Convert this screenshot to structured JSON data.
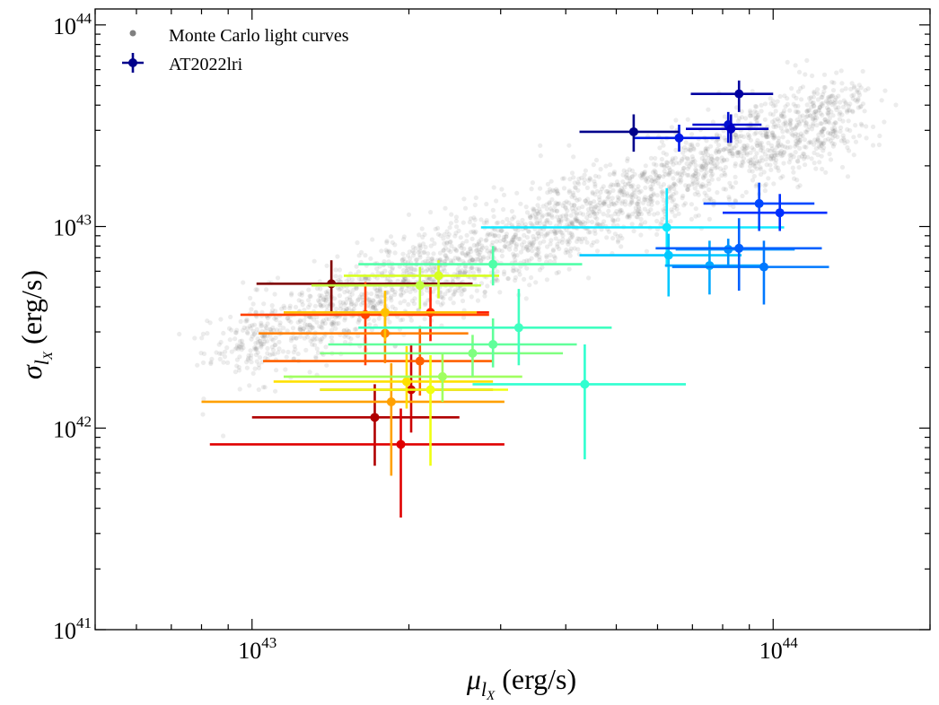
{
  "chart_data": {
    "type": "scatter",
    "title": "",
    "xlabel": {
      "symbol": "μ",
      "subscript": "l",
      "subsubscript": "X",
      "unit": " (erg/s)"
    },
    "ylabel": {
      "symbol": "σ",
      "subscript": "l",
      "subsubscript": "X",
      "unit": " (erg/s)"
    },
    "xscale": "log",
    "yscale": "log",
    "xlim": [
      5e+42,
      2e+44
    ],
    "ylim": [
      1e+41,
      1.2e+44
    ],
    "x_ticks": [
      {
        "base": "10",
        "exp": "43",
        "value": 1e+43
      },
      {
        "base": "10",
        "exp": "44",
        "value": 1e+44
      }
    ],
    "y_ticks": [
      {
        "base": "10",
        "exp": "41",
        "value": 1e+41
      },
      {
        "base": "10",
        "exp": "42",
        "value": 1e+42
      },
      {
        "base": "10",
        "exp": "43",
        "value": 1e+43
      },
      {
        "base": "10",
        "exp": "44",
        "value": 1e+44
      }
    ],
    "legend": {
      "position": "top-left",
      "entries": [
        {
          "label": "Monte Carlo light curves",
          "marker": "dot",
          "color": "#808080"
        },
        {
          "label": "AT2022lri",
          "marker": "errorbar",
          "color": "#00008b"
        }
      ]
    },
    "background_cloud": {
      "name": "Monte Carlo light curves",
      "color": "#808080",
      "opacity": 0.15,
      "relation": "sigma ≈ 0.27·mu (log-normal scatter), spanning mu ≈ 9e42–1.6e44"
    },
    "colormap": "jet",
    "series": [
      {
        "name": "AT2022lri",
        "color": "#800000",
        "x": 1.42e+43,
        "y": 5.2e+42,
        "xerr": [
          1.02e+43,
          2.65e+43
        ],
        "yerr": [
          3.7e+42,
          6.8e+42
        ]
      },
      {
        "name": "AT2022lri",
        "color": "#b00000",
        "x": 1.72e+43,
        "y": 1.13e+42,
        "xerr": [
          1e+43,
          2.5e+43
        ],
        "yerr": [
          6.5e+41,
          1.65e+42
        ]
      },
      {
        "name": "AT2022lri",
        "color": "#cc0000",
        "x": 2.02e+43,
        "y": 1.55e+42,
        "xerr": [
          1.35e+43,
          2.9e+43
        ],
        "yerr": [
          9.5e+41,
          2.6e+42
        ]
      },
      {
        "name": "AT2022lri",
        "color": "#e00000",
        "x": 1.93e+43,
        "y": 8.3e+41,
        "xerr": [
          8.3e+42,
          3.05e+43
        ],
        "yerr": [
          3.6e+41,
          1.25e+42
        ]
      },
      {
        "name": "AT2022lri",
        "color": "#ff2000",
        "x": 2.2e+43,
        "y": 3.75e+42,
        "xerr": [
          1.55e+43,
          2.85e+43
        ],
        "yerr": [
          2.7e+42,
          5e+42
        ]
      },
      {
        "name": "AT2022lri",
        "color": "#ff4000",
        "x": 1.65e+43,
        "y": 3.65e+42,
        "xerr": [
          9.5e+42,
          2.85e+43
        ],
        "yerr": [
          2.05e+42,
          5.3e+42
        ]
      },
      {
        "name": "AT2022lri",
        "color": "#ff6000",
        "x": 2.1e+43,
        "y": 2.15e+42,
        "xerr": [
          1.05e+43,
          2.9e+43
        ],
        "yerr": [
          1.45e+42,
          3.2e+42
        ]
      },
      {
        "name": "AT2022lri",
        "color": "#ff8000",
        "x": 1.8e+43,
        "y": 2.95e+42,
        "xerr": [
          1.03e+43,
          2.6e+43
        ],
        "yerr": [
          2.1e+42,
          4.1e+42
        ]
      },
      {
        "name": "AT2022lri",
        "color": "#ffa000",
        "x": 1.85e+43,
        "y": 1.35e+42,
        "xerr": [
          8e+42,
          3.05e+43
        ],
        "yerr": [
          5.8e+41,
          2.1e+42
        ]
      },
      {
        "name": "AT2022lri",
        "color": "#ffc000",
        "x": 1.8e+43,
        "y": 3.75e+42,
        "xerr": [
          1.15e+43,
          2.7e+43
        ],
        "yerr": [
          2.7e+42,
          4.8e+42
        ]
      },
      {
        "name": "AT2022lri",
        "color": "#ffe000",
        "x": 1.98e+43,
        "y": 1.7e+42,
        "xerr": [
          1.1e+43,
          2.9e+43
        ],
        "yerr": [
          1.25e+42,
          2.55e+42
        ]
      },
      {
        "name": "AT2022lri",
        "color": "#f0ff10",
        "x": 2.2e+43,
        "y": 1.55e+42,
        "xerr": [
          1.35e+43,
          3.1e+43
        ],
        "yerr": [
          6.5e+41,
          2.3e+42
        ]
      },
      {
        "name": "AT2022lri",
        "color": "#d8ff20",
        "x": 2.28e+43,
        "y": 5.7e+42,
        "xerr": [
          1.5e+43,
          2.98e+43
        ],
        "yerr": [
          4.4e+42,
          6.8e+42
        ]
      },
      {
        "name": "AT2022lri",
        "color": "#c0ff40",
        "x": 2.1e+43,
        "y": 5.1e+42,
        "xerr": [
          1.3e+43,
          2.75e+43
        ],
        "yerr": [
          3.9e+42,
          6.3e+42
        ]
      },
      {
        "name": "AT2022lri",
        "color": "#a0ff60",
        "x": 2.32e+43,
        "y": 1.8e+42,
        "xerr": [
          1.15e+43,
          3.3e+43
        ],
        "yerr": [
          1.35e+42,
          2.35e+42
        ]
      },
      {
        "name": "AT2022lri",
        "color": "#80ff80",
        "x": 2.65e+43,
        "y": 2.35e+42,
        "xerr": [
          1.35e+43,
          3.95e+43
        ],
        "yerr": [
          1.8e+42,
          2.9e+42
        ]
      },
      {
        "name": "AT2022lri",
        "color": "#60ff9a",
        "x": 2.9e+43,
        "y": 2.6e+42,
        "xerr": [
          1.4e+43,
          4.2e+43
        ],
        "yerr": [
          2e+42,
          3.5e+42
        ]
      },
      {
        "name": "AT2022lri",
        "color": "#50ffa8",
        "x": 2.9e+43,
        "y": 6.5e+42,
        "xerr": [
          1.6e+43,
          4.3e+43
        ],
        "yerr": [
          5.1e+42,
          8e+42
        ]
      },
      {
        "name": "AT2022lri",
        "color": "#40ffc0",
        "x": 3.25e+43,
        "y": 3.15e+42,
        "xerr": [
          1.6e+43,
          4.9e+43
        ],
        "yerr": [
          2.05e+42,
          4.9e+42
        ]
      },
      {
        "name": "AT2022lri",
        "color": "#30ffd0",
        "x": 4.35e+43,
        "y": 1.65e+42,
        "xerr": [
          2.65e+43,
          6.8e+43
        ],
        "yerr": [
          7e+41,
          2.6e+42
        ]
      },
      {
        "name": "AT2022lri",
        "color": "#10e8ff",
        "x": 6.25e+43,
        "y": 9.9e+42,
        "xerr": [
          2.75e+43,
          1.05e+44
        ],
        "yerr": [
          6.3e+42,
          1.55e+43
        ]
      },
      {
        "name": "AT2022lri",
        "color": "#00c8ff",
        "x": 6.3e+43,
        "y": 7.2e+42,
        "xerr": [
          4.25e+43,
          8.7e+43
        ],
        "yerr": [
          4.5e+42,
          9.2e+42
        ]
      },
      {
        "name": "AT2022lri",
        "color": "#00a8ff",
        "x": 7.55e+43,
        "y": 6.4e+42,
        "xerr": [
          6.2e+43,
          9.5e+43
        ],
        "yerr": [
          4.6e+42,
          8.5e+42
        ]
      },
      {
        "name": "AT2022lri",
        "color": "#0090ff",
        "x": 8.2e+43,
        "y": 7.7e+42,
        "xerr": [
          6.5e+43,
          1.1e+44
        ],
        "yerr": [
          6.3e+42,
          8.7e+42
        ]
      },
      {
        "name": "AT2022lri",
        "color": "#0078ff",
        "x": 9.6e+43,
        "y": 6.3e+42,
        "xerr": [
          6.4e+43,
          1.28e+44
        ],
        "yerr": [
          4.1e+42,
          8.5e+42
        ]
      },
      {
        "name": "AT2022lri",
        "color": "#0060ff",
        "x": 8.6e+43,
        "y": 7.8e+42,
        "xerr": [
          5.95e+43,
          1.24e+44
        ],
        "yerr": [
          4.8e+42,
          1.1e+43
        ]
      },
      {
        "name": "AT2022lri",
        "color": "#0048ff",
        "x": 9.4e+43,
        "y": 1.3e+43,
        "xerr": [
          7.35e+43,
          1.2e+44
        ],
        "yerr": [
          9.5e+42,
          1.65e+43
        ]
      },
      {
        "name": "AT2022lri",
        "color": "#0030ff",
        "x": 1.03e+44,
        "y": 1.17e+43,
        "xerr": [
          8e+43,
          1.27e+44
        ],
        "yerr": [
          9.5e+42,
          1.45e+43
        ]
      },
      {
        "name": "AT2022lri",
        "color": "#0018e8",
        "x": 6.6e+43,
        "y": 2.75e+43,
        "xerr": [
          5.4e+43,
          7.9e+43
        ],
        "yerr": [
          2.35e+43,
          3.2e+43
        ]
      },
      {
        "name": "AT2022lri",
        "color": "#0010d0",
        "x": 8.2e+43,
        "y": 3.2e+43,
        "xerr": [
          7e+43,
          9.5e+43
        ],
        "yerr": [
          2.6e+43,
          3.7e+43
        ]
      },
      {
        "name": "AT2022lri",
        "color": "#0000c0",
        "x": 8.3e+43,
        "y": 3.05e+43,
        "xerr": [
          6.8e+43,
          9.8e+43
        ],
        "yerr": [
          2.6e+43,
          3.6e+43
        ]
      },
      {
        "name": "AT2022lri",
        "color": "#0000a0",
        "x": 8.6e+43,
        "y": 4.55e+43,
        "xerr": [
          6.95e+43,
          1e+44
        ],
        "yerr": [
          3.7e+43,
          5.3e+43
        ]
      },
      {
        "name": "AT2022lri",
        "color": "#00008b",
        "x": 5.4e+43,
        "y": 2.95e+43,
        "xerr": [
          4.25e+43,
          6.6e+43
        ],
        "yerr": [
          2.35e+43,
          3.6e+43
        ]
      }
    ]
  }
}
